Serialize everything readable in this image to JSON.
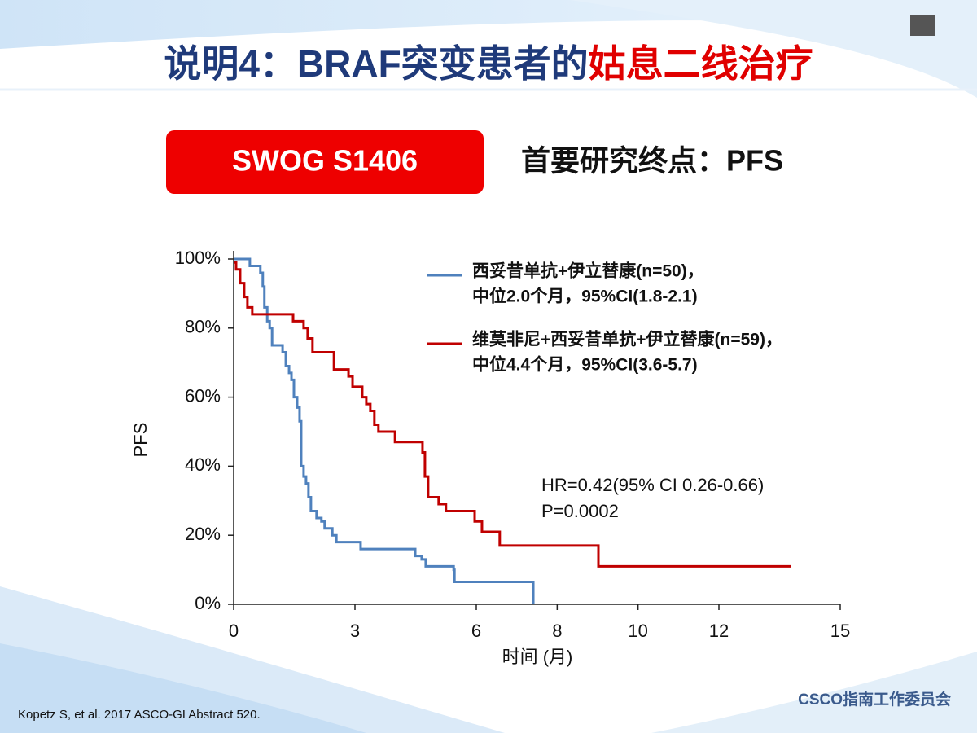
{
  "slide": {
    "title_main": "说明4：BRAF突变患者的",
    "title_highlight": "姑息二线治疗",
    "badge": "SWOG S1406",
    "endpoint": "首要研究终点：PFS",
    "footnote": "Kopetz S, et al. 2017 ASCO-GI Abstract 520.",
    "organization": "CSCO指南工作委员会"
  },
  "chart_data": {
    "type": "line",
    "step": true,
    "x_label": "时间 (月)",
    "y_label": "PFS",
    "annotations": [
      "HR=0.42(95% CI 0.26-0.66)",
      "P=0.0002"
    ],
    "xlim": [
      0,
      15
    ],
    "xticks": [
      0,
      3,
      6,
      8,
      10,
      12,
      15
    ],
    "ylim": [
      0,
      100
    ],
    "yticks": [
      {
        "value": 0,
        "label": "0%"
      },
      {
        "value": 20,
        "label": "20%"
      },
      {
        "value": 40,
        "label": "40%"
      },
      {
        "value": 60,
        "label": "60%"
      },
      {
        "value": 80,
        "label": "80%"
      },
      {
        "value": 100,
        "label": "100%"
      }
    ],
    "series": [
      {
        "name": "西妥昔单抗+伊立替康(n=50)，",
        "note": "中位2.0个月，95%CI(1.8-2.1)",
        "color": "#4f81bd",
        "x": [
          0,
          0.4,
          0.66,
          0.72,
          0.76,
          0.83,
          0.89,
          0.95,
          1.21,
          1.29,
          1.37,
          1.43,
          1.49,
          1.57,
          1.63,
          1.67,
          1.73,
          1.79,
          1.85,
          1.91,
          2.05,
          2.17,
          2.25,
          2.44,
          2.54,
          3.14,
          4.49,
          4.65,
          4.75,
          5.44,
          5.46,
          7.41
        ],
        "values": [
          100,
          98,
          96,
          92,
          86,
          82,
          80,
          75,
          73,
          69,
          67,
          65,
          60,
          57,
          53,
          40,
          37,
          35,
          31,
          27,
          25,
          24,
          22,
          20,
          18,
          16,
          14,
          13,
          11,
          10,
          6.5,
          0
        ]
      },
      {
        "name": "维莫非尼+西妥昔单抗+伊立替康(n=59)，",
        "note": "中位4.4个月，95%CI(3.6-5.7)",
        "color": "#c00000",
        "x": [
          0,
          0.06,
          0.16,
          0.26,
          0.34,
          0.46,
          1.47,
          1.73,
          1.83,
          1.95,
          2.48,
          2.84,
          2.94,
          3.18,
          3.28,
          3.38,
          3.48,
          3.58,
          3.99,
          4.67,
          4.73,
          4.81,
          5.07,
          5.25,
          5.96,
          6.14,
          6.58,
          9.02,
          13.79
        ],
        "values": [
          99,
          97,
          93,
          89,
          86,
          84,
          82,
          80,
          77,
          73,
          68,
          66,
          63,
          60,
          58,
          56,
          52,
          50,
          47,
          44,
          37,
          31,
          29,
          27,
          24,
          21,
          17,
          11,
          11
        ]
      }
    ]
  }
}
